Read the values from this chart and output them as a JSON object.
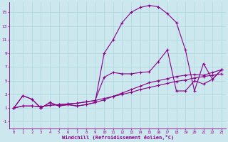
{
  "bg_color": "#cce8ee",
  "grid_color": "#b0d8e0",
  "line_color": "#880088",
  "xlabel": "Windchill (Refroidissement éolien,°C)",
  "xlim_min": -0.5,
  "xlim_max": 23.5,
  "ylim_min": -2.0,
  "ylim_max": 16.5,
  "xticks": [
    0,
    1,
    2,
    3,
    4,
    5,
    6,
    7,
    8,
    9,
    10,
    11,
    12,
    13,
    14,
    15,
    16,
    17,
    18,
    19,
    20,
    21,
    22,
    23
  ],
  "yticks": [
    -1,
    1,
    3,
    5,
    7,
    9,
    11,
    13,
    15
  ],
  "s1_x": [
    0,
    1,
    2,
    3,
    4,
    5,
    6,
    7,
    8,
    9,
    10,
    11,
    12,
    13,
    14,
    15,
    16,
    17,
    18,
    19,
    20,
    21,
    22,
    23
  ],
  "s1_y": [
    1.0,
    1.3,
    1.3,
    1.2,
    1.4,
    1.5,
    1.6,
    1.7,
    1.9,
    2.1,
    2.4,
    2.7,
    3.0,
    3.3,
    3.7,
    4.0,
    4.3,
    4.6,
    4.9,
    5.1,
    5.4,
    5.6,
    5.8,
    6.0
  ],
  "s2_x": [
    0,
    1,
    2,
    3,
    4,
    5,
    6,
    7,
    8,
    9,
    10,
    11,
    12,
    13,
    14,
    15,
    16,
    17,
    18,
    19,
    20,
    21,
    22,
    23
  ],
  "s2_y": [
    1.0,
    2.8,
    2.3,
    1.0,
    1.8,
    1.3,
    1.5,
    1.3,
    1.5,
    1.8,
    2.2,
    2.7,
    3.2,
    3.7,
    4.2,
    4.7,
    5.0,
    5.3,
    5.6,
    5.8,
    5.9,
    5.8,
    6.2,
    6.6
  ],
  "s3_x": [
    0,
    1,
    2,
    3,
    4,
    5,
    6,
    7,
    8,
    9,
    10,
    11,
    12,
    13,
    14,
    15,
    16,
    17,
    18,
    19,
    20,
    21,
    22,
    23
  ],
  "s3_y": [
    1.0,
    2.8,
    2.3,
    1.0,
    1.8,
    1.3,
    1.5,
    1.3,
    1.5,
    1.8,
    9.0,
    11.0,
    13.5,
    15.0,
    15.7,
    16.0,
    15.8,
    14.8,
    13.5,
    9.5,
    3.5,
    7.5,
    5.2,
    6.6
  ],
  "s4_x": [
    0,
    1,
    2,
    3,
    4,
    5,
    6,
    7,
    8,
    9,
    10,
    11,
    12,
    13,
    14,
    15,
    16,
    17,
    18,
    19,
    20,
    21,
    22,
    23
  ],
  "s4_y": [
    1.0,
    1.3,
    1.3,
    1.2,
    1.4,
    1.5,
    1.6,
    1.7,
    1.9,
    2.1,
    5.5,
    6.2,
    6.0,
    6.0,
    6.2,
    6.3,
    7.8,
    9.5,
    3.5,
    3.5,
    5.0,
    4.5,
    5.2,
    6.6
  ]
}
